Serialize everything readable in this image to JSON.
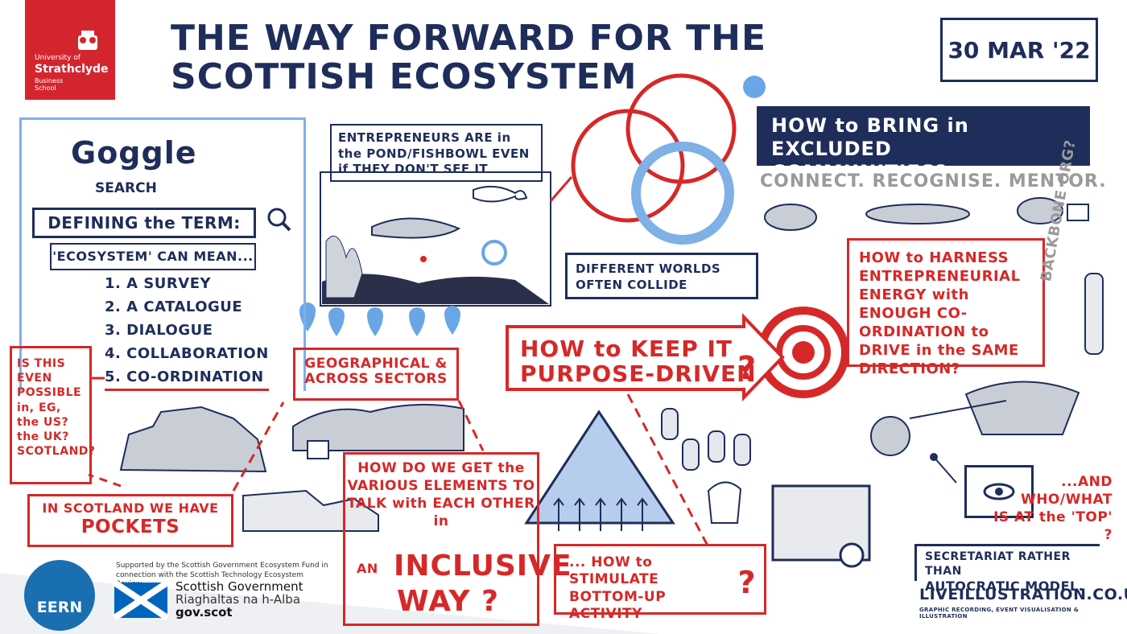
{
  "logo": {
    "line1": "University of",
    "line2": "Strathclyde",
    "line3": "Business",
    "line4": "School"
  },
  "title": "THE WAY FORWARD FOR THE SCOTTISH ECOSYSTEM",
  "date": "30 MAR '22",
  "search_panel": {
    "brand": "Goggle",
    "search_word": "SEARCH",
    "query": "DEFINING the TERM:",
    "meaning_label": "'ECOSYSTEM' CAN MEAN...",
    "meanings": [
      "1. A SURVEY",
      "2. A CATALOGUE",
      "3. DIALOGUE",
      "4. COLLABORATION",
      "5. CO-ORDINATION"
    ]
  },
  "notes": {
    "even_possible": "IS THIS EVEN POSSIBLE in, EG, the US? the UK? SCOTLAND?",
    "pockets_line1": "IN SCOTLAND WE HAVE",
    "pockets_line2": "POCKETS",
    "geographical": "GEOGRAPHICAL & ACROSS SECTORS",
    "talk_main": "HOW DO WE GET the VARIOUS ELEMENTS TO TALK with EACH OTHER in",
    "talk_an": "AN",
    "talk_inclusive": "INCLUSIVE",
    "talk_way": "WAY ?",
    "stimulate": "... HOW to STIMULATE BOTTOM-UP ACTIVITY",
    "stimulate_q": "?",
    "pond": "ENTREPRENEURS ARE in the POND/FISHBOWL EVEN if THEY DON'T SEE IT",
    "worlds": "DIFFERENT WORLDS OFTEN COLLIDE",
    "excluded": "HOW to BRING in EXCLUDED COMMUNITIES?",
    "connect": "CONNECT. RECOGNISE. MENTOR.",
    "harness": "HOW to HARNESS ENTREPRENEURIAL ENERGY with ENOUGH CO-ORDINATION to DRIVE in the SAME DIRECTION?",
    "backbone": "BACKBONE ORG?",
    "purpose_line1": "HOW to KEEP IT",
    "purpose_line2": "PURPOSE-DRIVEN",
    "purpose_q": "?",
    "who_line1": "...AND",
    "who_line2": "WHO/WHAT",
    "who_line3": "IS AT the 'TOP' ?",
    "secretariat_line1": "SECRETARIAT RATHER THAN",
    "secretariat_line2": "AUTOCRATIC MODEL."
  },
  "footer": {
    "eern": "EERN",
    "support": "Supported by the Scottish Government Ecosystem Fund in connection with the Scottish Technology Ecosystem Review",
    "gov1": "Scottish Government",
    "gov2": "Riaghaltas na h-Alba",
    "gov3": "gov.scot",
    "live_url": "LIVEILLUSTRATION.CO.UK",
    "live_sub": "GRAPHIC RECORDING, EVENT VISUALISATION & ILLUSTRATION"
  },
  "colors": {
    "navy": "#1e2d5a",
    "red": "#d62828",
    "lightblue": "#7fb0e6",
    "grey": "#9a9a9a"
  }
}
